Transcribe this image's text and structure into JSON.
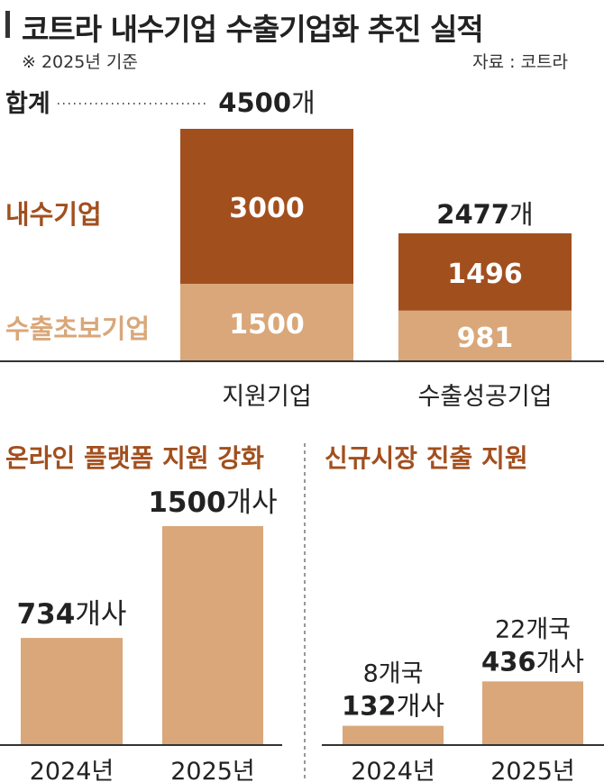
{
  "header": {
    "title": "코트라 내수기업 수출기업화 추진 실적",
    "note": "※ 2025년 기준",
    "source": "자료 : 코트라"
  },
  "colors": {
    "dark": "#a24f1e",
    "light": "#d9a779",
    "text": "#222222",
    "axis": "#333333"
  },
  "chart_data": [
    {
      "type": "bar",
      "stacked": true,
      "categories": [
        "지원기업",
        "수출성공기업"
      ],
      "series": [
        {
          "name": "수출초보기업",
          "values": [
            1500,
            981
          ],
          "color": "#d9a779"
        },
        {
          "name": "내수기업",
          "values": [
            3000,
            1496
          ],
          "color": "#a24f1e"
        }
      ],
      "totals": [
        "4500",
        "2477"
      ],
      "total_unit": "개",
      "total_label": "합계",
      "legend_placement": "left",
      "ylim": [
        0,
        4500
      ]
    },
    {
      "type": "bar",
      "title": "온라인 플랫폼 지원 강화",
      "categories": [
        "2024년",
        "2025년"
      ],
      "values": [
        734,
        1500
      ],
      "value_labels": [
        {
          "num": "734",
          "unit": "개사"
        },
        {
          "num": "1500",
          "unit": "개사"
        }
      ],
      "ylim": [
        0,
        1500
      ]
    },
    {
      "type": "bar",
      "title": "신규시장 진출 지원",
      "categories": [
        "2024년",
        "2025년"
      ],
      "values": [
        132,
        436
      ],
      "value_labels": [
        {
          "num": "132",
          "unit": "개사",
          "extra": "8개국"
        },
        {
          "num": "436",
          "unit": "개사",
          "extra": "22개국"
        }
      ],
      "ylim": [
        0,
        1500
      ]
    }
  ]
}
